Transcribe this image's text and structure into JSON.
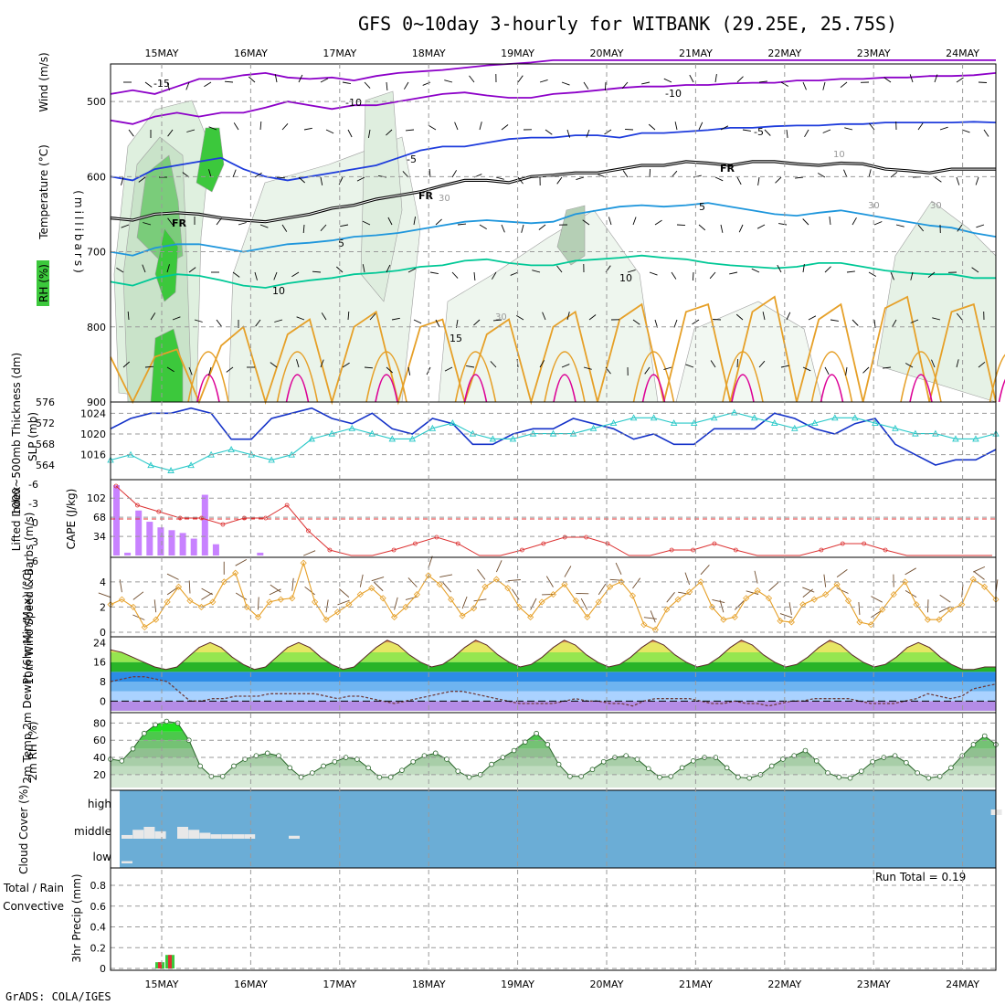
{
  "title": "GFS 0~10day 3-hourly for WITBANK (29.25E, 25.75S)",
  "footer": "GrADS: COLA/IGES",
  "colors": {
    "rh_green": "#3cc83c",
    "temp_purple": "#8c00c8",
    "temp_blue": "#1e3cdc",
    "temp_cyan": "#1e96dc",
    "temp_teal": "#00c896",
    "temp_orange": "#e6a028",
    "temp_magenta": "#dc0096",
    "slp": "#1432c8",
    "thickness": "#28c8c8",
    "cape": "#c882ff",
    "lifted": "#dc3232",
    "wind10": "#e6a028",
    "cloud_bg": "#6badd6",
    "cloud_bar": "#e8e8e8",
    "precip_total": "#3cc83c",
    "precip_conv": "#dc3232"
  },
  "chart_data": [
    {
      "panel": "upper-air",
      "type": "heatmap",
      "date_ticks": [
        "15MAY",
        "16MAY",
        "17MAY",
        "18MAY",
        "19MAY",
        "20MAY",
        "21MAY",
        "22MAY",
        "23MAY",
        "24MAY"
      ],
      "ylabel": "(millibars)",
      "side_labels": [
        "Wind (m/s)",
        "Temperature (°C)",
        "RH (%)"
      ],
      "y_ticks": [
        "500",
        "600",
        "700",
        "800",
        "900"
      ],
      "ylim": [
        450,
        900
      ],
      "contour_labels": [
        "-15",
        "-10",
        "-10",
        "-5",
        "-5",
        "FR",
        "FR",
        "FR",
        "5",
        "5",
        "10",
        "10",
        "15",
        "30",
        "30",
        "30",
        "10",
        "30"
      ],
      "isotherms": [
        {
          "name": "-15/-10",
          "color": "temp_purple",
          "p": [
            490,
            485,
            490,
            480,
            470,
            470,
            465,
            462,
            468,
            470,
            468,
            472,
            466,
            462,
            460,
            458,
            455,
            452,
            450,
            448,
            445,
            445,
            445,
            445,
            445,
            445,
            445,
            445,
            445,
            445,
            445,
            445,
            445,
            445,
            445,
            445,
            445,
            445,
            445,
            445,
            445
          ]
        },
        {
          "name": "-10",
          "color": "temp_purple",
          "p": [
            525,
            530,
            520,
            515,
            520,
            515,
            515,
            508,
            500,
            505,
            510,
            505,
            505,
            500,
            495,
            490,
            488,
            492,
            495,
            495,
            490,
            488,
            485,
            482,
            480,
            480,
            478,
            478,
            476,
            475,
            475,
            472,
            472,
            470,
            470,
            468,
            468,
            466,
            466,
            465,
            462
          ]
        },
        {
          "name": "-5",
          "color": "temp_blue",
          "p": [
            600,
            605,
            590,
            585,
            580,
            575,
            590,
            600,
            605,
            600,
            595,
            590,
            585,
            575,
            565,
            560,
            560,
            555,
            550,
            548,
            548,
            545,
            545,
            548,
            542,
            542,
            540,
            538,
            535,
            535,
            533,
            532,
            532,
            530,
            530,
            528,
            528,
            528,
            528,
            527,
            528
          ]
        },
        {
          "name": "FR",
          "color": "#000000",
          "p": [
            655,
            658,
            650,
            648,
            650,
            655,
            658,
            660,
            655,
            650,
            642,
            638,
            630,
            625,
            620,
            612,
            605,
            605,
            608,
            600,
            598,
            595,
            595,
            590,
            585,
            585,
            580,
            582,
            585,
            580,
            580,
            583,
            585,
            582,
            583,
            590,
            592,
            595,
            590,
            590,
            590
          ]
        },
        {
          "name": "5",
          "color": "temp_cyan",
          "p": [
            700,
            705,
            695,
            690,
            690,
            695,
            700,
            695,
            690,
            688,
            685,
            680,
            678,
            675,
            670,
            665,
            660,
            658,
            660,
            662,
            660,
            650,
            645,
            640,
            638,
            640,
            638,
            635,
            640,
            645,
            650,
            652,
            648,
            645,
            650,
            655,
            660,
            665,
            668,
            675,
            680
          ]
        },
        {
          "name": "10",
          "color": "temp_teal",
          "p": [
            740,
            745,
            735,
            730,
            732,
            738,
            745,
            748,
            742,
            738,
            735,
            730,
            728,
            725,
            720,
            718,
            712,
            710,
            715,
            718,
            718,
            712,
            710,
            708,
            705,
            708,
            710,
            715,
            718,
            720,
            722,
            720,
            715,
            715,
            720,
            725,
            728,
            730,
            730,
            735,
            735
          ]
        },
        {
          "name": "15",
          "color": "temp_orange",
          "p": [
            840,
            900,
            840,
            830,
            900,
            825,
            800,
            900,
            810,
            790,
            900,
            800,
            780,
            900,
            800,
            790,
            900,
            810,
            790,
            900,
            800,
            780,
            900,
            790,
            770,
            900,
            780,
            770,
            900,
            780,
            760,
            900,
            790,
            770,
            900,
            775,
            760,
            900,
            780,
            770,
            900
          ]
        }
      ]
    },
    {
      "panel": "slp-thickness",
      "type": "line",
      "ylabel_left": "1000~500mb Thickness (dm)",
      "ylabel_right": "SLP (mb)",
      "y_ticks_left": [
        "564",
        "568",
        "572",
        "576"
      ],
      "y_ticks_right": [
        "1016",
        "1020",
        "1024"
      ],
      "series": [
        {
          "name": "SLP",
          "color": "slp",
          "values": [
            1021,
            1023,
            1024,
            1024,
            1025,
            1024,
            1019,
            1019,
            1023,
            1024,
            1025,
            1023,
            1022,
            1024,
            1021,
            1020,
            1023,
            1022,
            1018,
            1018,
            1020,
            1021,
            1021,
            1023,
            1022,
            1021,
            1019,
            1020,
            1018,
            1018,
            1021,
            1021,
            1021,
            1024,
            1023,
            1021,
            1020,
            1022,
            1023,
            1018,
            1016,
            1014,
            1015,
            1015,
            1017
          ]
        },
        {
          "name": "Thickness",
          "color": "thickness",
          "values": [
            565,
            566,
            564,
            563,
            564,
            566,
            567,
            566,
            565,
            566,
            569,
            570,
            571,
            570,
            569,
            569,
            571,
            572,
            570,
            569,
            569,
            570,
            570,
            570,
            571,
            572,
            573,
            573,
            572,
            572,
            573,
            574,
            573,
            572,
            571,
            572,
            573,
            573,
            572,
            571,
            570,
            570,
            569,
            569,
            570
          ]
        }
      ]
    },
    {
      "panel": "cape-lifted",
      "type": "bar",
      "ylabel_left": "Lifted Index",
      "ylabel_right": "CAPE (J/kg)",
      "y_ticks_left": [
        "-6",
        "-3",
        "0",
        "3",
        "6"
      ],
      "y_ticks_right": [
        "34",
        "68",
        "102"
      ],
      "series": [
        {
          "name": "CAPE",
          "color": "cape",
          "values": [
            125,
            5,
            80,
            60,
            50,
            45,
            40,
            30,
            108,
            20,
            0,
            0,
            0,
            5,
            0,
            0,
            0,
            0,
            0,
            0,
            0,
            0,
            0,
            0,
            0,
            0,
            0,
            0,
            0,
            0,
            0,
            0,
            0,
            0,
            0,
            0,
            0,
            0,
            0,
            0,
            0,
            0
          ]
        },
        {
          "name": "Lifted Index",
          "color": "lifted",
          "values": [
            -5,
            -2,
            -1,
            0,
            0,
            1,
            0,
            0,
            -2,
            2,
            5,
            6,
            6,
            5,
            4,
            3,
            4,
            6,
            6,
            5,
            4,
            3,
            3,
            4,
            6,
            6,
            5,
            5,
            4,
            5,
            6,
            6,
            6,
            5,
            4,
            4,
            5,
            6,
            6,
            6,
            6,
            6
          ]
        }
      ]
    },
    {
      "panel": "wind10",
      "type": "line",
      "ylabel": "10m Wind Speed & Barbs (m/s)",
      "y_ticks": [
        "0",
        "2",
        "4"
      ],
      "series": [
        {
          "name": "Speed",
          "color": "wind10",
          "values": [
            2.2,
            2.6,
            2.0,
            0.4,
            1.0,
            2.4,
            3.6,
            2.5,
            2.0,
            2.4,
            4.0,
            4.7,
            2.0,
            1.2,
            2.4,
            2.6,
            2.7,
            5.5,
            2.4,
            1.0,
            1.6,
            2.2,
            3.0,
            3.5,
            2.7,
            1.2,
            2.0,
            3.0,
            4.5,
            3.8,
            2.6,
            1.3,
            1.9,
            3.6,
            4.2,
            3.5,
            2.0,
            1.2,
            2.4,
            3.0,
            3.8,
            2.5,
            1.2,
            2.4,
            3.6,
            4.0,
            2.9,
            0.6,
            0.2,
            1.8,
            2.6,
            3.2,
            4.0,
            2.0,
            1.0,
            1.2,
            2.7,
            3.3,
            2.7,
            0.9,
            0.8,
            2.2,
            2.6,
            3.0,
            3.8,
            2.5,
            0.8,
            0.6,
            1.8,
            3.0,
            4.0,
            2.2,
            1.0,
            1.0,
            1.8,
            2.2,
            4.2,
            3.6,
            2.6
          ]
        }
      ]
    },
    {
      "panel": "temp2m",
      "type": "area",
      "ylabel": "2m Temp 2m DewPt (6hr Min/Max) (°C)",
      "y_ticks": [
        "0",
        "8",
        "16",
        "24"
      ],
      "series": [
        {
          "name": "2m Temp",
          "values": [
            21,
            20,
            18,
            16,
            14,
            13,
            14,
            18,
            22,
            24,
            22,
            18,
            15,
            13,
            14,
            18,
            22,
            24,
            22,
            18,
            15,
            13,
            14,
            18,
            22,
            25,
            23,
            19,
            16,
            14,
            15,
            18,
            22,
            25,
            23,
            19,
            16,
            14,
            15,
            18,
            22,
            25,
            23,
            19,
            16,
            14,
            15,
            18,
            22,
            25,
            23,
            19,
            16,
            14,
            15,
            18,
            22,
            25,
            23,
            19,
            16,
            14,
            15,
            18,
            22,
            25,
            23,
            19,
            16,
            14,
            15,
            18,
            22,
            24,
            22,
            18,
            15,
            13,
            13,
            14,
            14
          ]
        },
        {
          "name": "2m DewPt",
          "values": [
            8,
            9,
            10,
            10,
            9,
            8,
            4,
            0,
            0,
            1,
            1,
            2,
            2,
            2,
            3,
            3,
            3,
            3,
            3,
            2,
            1,
            2,
            2,
            1,
            0,
            -1,
            0,
            1,
            2,
            3,
            4,
            4,
            3,
            2,
            1,
            0,
            -1,
            -1,
            -1,
            -1,
            0,
            1,
            0,
            0,
            -1,
            -1,
            -2,
            0,
            1,
            1,
            1,
            1,
            0,
            -1,
            -1,
            0,
            -1,
            -1,
            -2,
            -1,
            0,
            0,
            1,
            1,
            1,
            1,
            0,
            -1,
            -1,
            -1,
            0,
            1,
            3,
            2,
            1,
            2,
            5,
            6,
            7
          ]
        }
      ]
    },
    {
      "panel": "rh2m",
      "type": "area",
      "ylabel": "2m RH (%)",
      "y_ticks": [
        "20",
        "40",
        "60",
        "80"
      ],
      "series": [
        {
          "name": "2m RH",
          "values": [
            38,
            36,
            50,
            68,
            78,
            82,
            80,
            60,
            30,
            18,
            18,
            30,
            38,
            42,
            45,
            42,
            28,
            17,
            22,
            30,
            35,
            40,
            38,
            28,
            17,
            17,
            25,
            35,
            42,
            45,
            38,
            24,
            17,
            20,
            32,
            40,
            48,
            58,
            68,
            55,
            32,
            18,
            18,
            26,
            35,
            40,
            42,
            38,
            27,
            17,
            18,
            28,
            36,
            40,
            40,
            28,
            17,
            16,
            20,
            30,
            38,
            42,
            48,
            36,
            22,
            17,
            16,
            24,
            35,
            40,
            42,
            34,
            22,
            16,
            18,
            28,
            42,
            55,
            65,
            55
          ]
        }
      ]
    },
    {
      "panel": "cloud",
      "type": "bar",
      "ylabel": "Cloud Cover (%)",
      "y_ticks": [
        "low",
        "middle",
        "high"
      ],
      "series": [
        {
          "name": "low",
          "values": [
            20,
            0,
            0,
            0,
            0,
            0,
            0,
            0,
            0,
            0
          ]
        },
        {
          "name": "middle",
          "values": [
            25,
            60,
            80,
            50,
            0,
            80,
            60,
            40,
            30,
            30,
            30,
            30,
            0,
            0,
            0,
            20,
            0,
            0,
            0,
            0,
            0
          ]
        },
        {
          "name": "high",
          "values": [
            0,
            0,
            0,
            0,
            0,
            0,
            0,
            0,
            0,
            0,
            0,
            0,
            0,
            0,
            0,
            0,
            0,
            0,
            0,
            0,
            0,
            0,
            0,
            0,
            0,
            0,
            0,
            0,
            0,
            0,
            0,
            0,
            0,
            0,
            0,
            0,
            0,
            0,
            0,
            0,
            0,
            0,
            0,
            0,
            0,
            0,
            0,
            0,
            0,
            0,
            0,
            0,
            0,
            0,
            0,
            0,
            0,
            0,
            0,
            0,
            0,
            0,
            0,
            0,
            0,
            0,
            0,
            0,
            0,
            0,
            0,
            0,
            0,
            0,
            0,
            0,
            0,
            0,
            40,
            0
          ]
        }
      ]
    },
    {
      "panel": "precip",
      "type": "bar",
      "ylabel": "3hr Precip (mm)",
      "side_labels": [
        "Total / Rain",
        "Convective"
      ],
      "annotation": "Run Total = 0.19",
      "y_ticks": [
        "0",
        "0.2",
        "0.4",
        "0.6",
        "0.8"
      ],
      "ylim": [
        0,
        0.95
      ],
      "series": [
        {
          "name": "Total / Rain",
          "color": "precip_total",
          "values": [
            0.06,
            0.13
          ]
        },
        {
          "name": "Convective",
          "color": "precip_conv",
          "values": [
            0.06,
            0.13
          ]
        }
      ]
    }
  ]
}
